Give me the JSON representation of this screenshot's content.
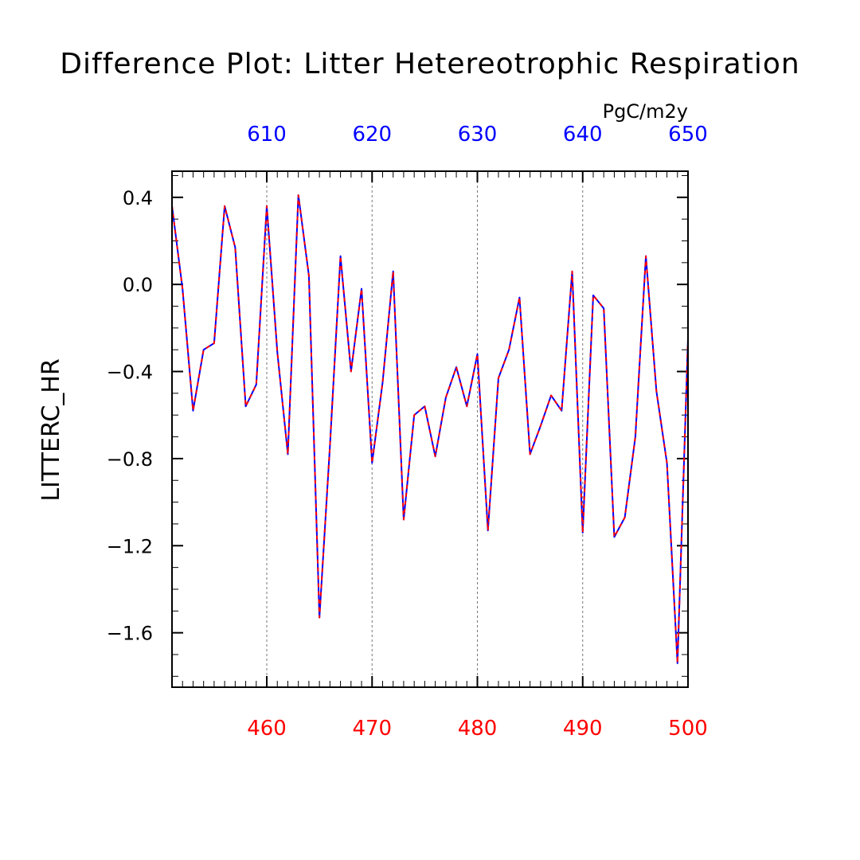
{
  "chart_data": {
    "type": "line",
    "title": "Difference Plot: Litter Hetereotrophic Respiration",
    "units": "PgC/m2y",
    "ylabel": "LITTERC_HR",
    "xlabel": "",
    "bottom_axis": {
      "range": [
        451,
        500
      ],
      "ticks": [
        460,
        470,
        480,
        490,
        500
      ],
      "tick_labels": [
        "460",
        "470",
        "480",
        "490",
        "500"
      ],
      "color": "#ff0000"
    },
    "top_axis": {
      "range": [
        601,
        650
      ],
      "ticks": [
        610,
        620,
        630,
        640,
        650
      ],
      "tick_labels": [
        "610",
        "620",
        "630",
        "640",
        "650"
      ],
      "color": "#0000ff"
    },
    "ylim": [
      -1.85,
      0.52
    ],
    "yticks": [
      0.4,
      0.0,
      -0.4,
      -0.8,
      -1.2,
      -1.6
    ],
    "ytick_labels": [
      "0.4",
      "0.0",
      "−0.4",
      "−0.8",
      "−1.2",
      "−1.6"
    ],
    "grid": "dashed vertical at major x ticks",
    "x": [
      451,
      452,
      453,
      454,
      455,
      456,
      457,
      458,
      459,
      460,
      461,
      462,
      463,
      464,
      465,
      466,
      467,
      468,
      469,
      470,
      471,
      472,
      473,
      474,
      475,
      476,
      477,
      478,
      479,
      480,
      481,
      482,
      483,
      484,
      485,
      486,
      487,
      488,
      489,
      490,
      491,
      492,
      493,
      494,
      495,
      496,
      497,
      498,
      499,
      500
    ],
    "series": [
      {
        "axis": "bottom",
        "color": "#0000ff",
        "style": "solid",
        "values": [
          0.36,
          -0.02,
          -0.58,
          -0.3,
          -0.27,
          0.36,
          0.17,
          -0.56,
          -0.46,
          0.36,
          -0.31,
          -0.78,
          0.41,
          0.04,
          -1.53,
          -0.74,
          0.13,
          -0.4,
          -0.02,
          -0.82,
          -0.45,
          0.06,
          -1.08,
          -0.6,
          -0.56,
          -0.79,
          -0.52,
          -0.38,
          -0.56,
          -0.32,
          -1.13,
          -0.43,
          -0.3,
          -0.06,
          -0.78,
          -0.65,
          -0.51,
          -0.58,
          0.06,
          -1.14,
          -0.05,
          -0.11,
          -1.16,
          -1.07,
          -0.7,
          0.13,
          -0.49,
          -0.82,
          -1.74,
          -0.25
        ]
      },
      {
        "axis": "top",
        "color": "#ff0000",
        "style": "dashed",
        "values": [
          0.36,
          -0.02,
          -0.58,
          -0.3,
          -0.27,
          0.36,
          0.17,
          -0.56,
          -0.46,
          0.36,
          -0.31,
          -0.78,
          0.41,
          0.04,
          -1.53,
          -0.74,
          0.13,
          -0.4,
          -0.02,
          -0.82,
          -0.45,
          0.06,
          -1.08,
          -0.6,
          -0.56,
          -0.79,
          -0.52,
          -0.38,
          -0.56,
          -0.32,
          -1.13,
          -0.43,
          -0.3,
          -0.06,
          -0.78,
          -0.65,
          -0.51,
          -0.58,
          0.06,
          -1.14,
          -0.05,
          -0.11,
          -1.16,
          -1.07,
          -0.7,
          0.13,
          -0.49,
          -0.82,
          -1.74,
          -0.25
        ]
      }
    ]
  }
}
